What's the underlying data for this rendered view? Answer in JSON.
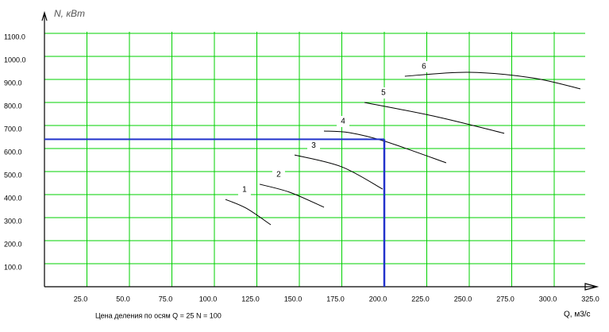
{
  "chart_data": {
    "type": "line",
    "y_label": "N, кВт",
    "x_label": "Q, м3/с",
    "footnote": "Цена деления по осям Q = 25  N  = 100",
    "xlim": [
      0,
      325
    ],
    "ylim": [
      0,
      1200
    ],
    "xticks": [
      {
        "value": 25,
        "label": "25.0"
      },
      {
        "value": 50,
        "label": "50.0"
      },
      {
        "value": 75,
        "label": "75.0"
      },
      {
        "value": 100,
        "label": "100.0"
      },
      {
        "value": 125,
        "label": "125.0"
      },
      {
        "value": 150,
        "label": "150.0"
      },
      {
        "value": 175,
        "label": "175.0"
      },
      {
        "value": 200,
        "label": "200.0"
      },
      {
        "value": 225,
        "label": "225.0"
      },
      {
        "value": 250,
        "label": "250.0"
      },
      {
        "value": 275,
        "label": "275.0"
      },
      {
        "value": 300,
        "label": "300.0"
      },
      {
        "value": 325,
        "label": "325.0"
      }
    ],
    "yticks": [
      {
        "value": 100,
        "label": "100.0"
      },
      {
        "value": 200,
        "label": "200.0"
      },
      {
        "value": 300,
        "label": "300.0"
      },
      {
        "value": 400,
        "label": "400.0"
      },
      {
        "value": 500,
        "label": "500.0"
      },
      {
        "value": 600,
        "label": "600.0"
      },
      {
        "value": 700,
        "label": "700.0"
      },
      {
        "value": 800,
        "label": "800.0"
      },
      {
        "value": 900,
        "label": "900.0"
      },
      {
        "value": 1000,
        "label": "1000.0"
      },
      {
        "value": 1100,
        "label": "1100.0"
      }
    ],
    "grid": true,
    "grid_color": "#00d000",
    "series": [
      {
        "name": "1",
        "color": "#000000",
        "x": [
          106.5,
          118.7,
          133.2
        ],
        "values": [
          379,
          341,
          269
        ]
      },
      {
        "name": "2",
        "color": "#000000",
        "x": [
          126.6,
          144.4,
          164.5
        ],
        "values": [
          445,
          410,
          345
        ]
      },
      {
        "name": "3",
        "color": "#000000",
        "x": [
          147.2,
          174.8,
          199
        ],
        "values": [
          572,
          521,
          424
        ]
      },
      {
        "name": "4",
        "color": "#000000",
        "x": [
          164.5,
          179.4,
          200.5,
          236.4
        ],
        "values": [
          676,
          669,
          631,
          538
        ]
      },
      {
        "name": "5",
        "color": "#000000",
        "x": [
          188.3,
          230.8,
          270.6
        ],
        "values": [
          800,
          738,
          666
        ]
      },
      {
        "name": "6",
        "color": "#000000",
        "x": [
          212.1,
          249.5,
          286.9,
          315.4
        ],
        "values": [
          914,
          931,
          907,
          859
        ]
      }
    ],
    "operating_point": {
      "x": 200,
      "y": 640,
      "color": "#2233cc"
    }
  }
}
